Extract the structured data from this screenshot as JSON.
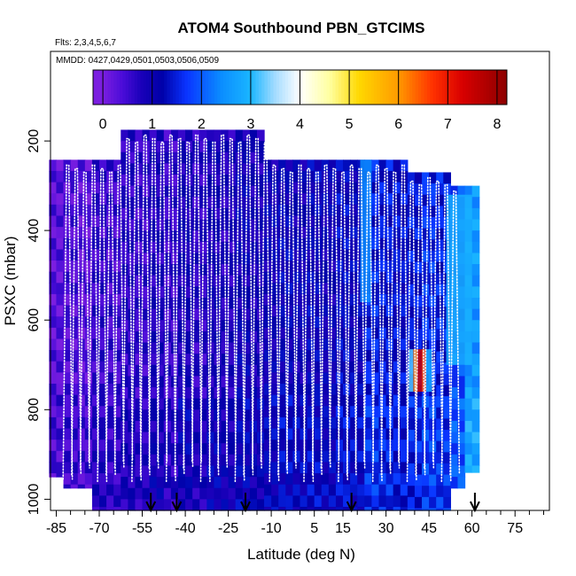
{
  "chart_data": {
    "type": "heatmap",
    "title": "ATOM4 Southbound PBN_GTCIMS",
    "subtitle_flights": "Flts: 2,3,4,5,6,7",
    "subtitle_dates": "MMDD: 0427,0429,0501,0503,0506,0509",
    "xlabel": "Latitude (deg N)",
    "ylabel": "PSXC (mbar)",
    "xlim": [
      -87,
      87
    ],
    "ylim": [
      1025,
      0
    ],
    "x_tick_labels": [
      {
        "value": -85,
        "label": "-85"
      },
      {
        "value": -70,
        "label": "-70"
      },
      {
        "value": -55,
        "label": "-55"
      },
      {
        "value": -40,
        "label": "-40"
      },
      {
        "value": -25,
        "label": "-25"
      },
      {
        "value": -10,
        "label": "-10"
      },
      {
        "value": 5,
        "label": "5"
      },
      {
        "value": 15,
        "label": "15"
      },
      {
        "value": 30,
        "label": "30"
      },
      {
        "value": 45,
        "label": "45"
      },
      {
        "value": 60,
        "label": "60"
      },
      {
        "value": 75,
        "label": "75"
      }
    ],
    "x_minor_ticks": [
      -80,
      -75,
      -65,
      -60,
      -50,
      -45,
      -35,
      -30,
      -20,
      -15,
      -5,
      0,
      10,
      20,
      25,
      35,
      40,
      50,
      55,
      65,
      70,
      80,
      85
    ],
    "y_ticks": [
      {
        "value": 200,
        "label": "200"
      },
      {
        "value": 400,
        "label": "400"
      },
      {
        "value": 600,
        "label": "600"
      },
      {
        "value": 800,
        "label": "800"
      },
      {
        "value": 1000,
        "label": "1000"
      }
    ],
    "colorbar": {
      "min": -0.2,
      "max": 8.2,
      "ticks": [
        {
          "value": 0,
          "label": "0"
        },
        {
          "value": 1,
          "label": "1"
        },
        {
          "value": 2,
          "label": "2"
        },
        {
          "value": 3,
          "label": "3"
        },
        {
          "value": 4,
          "label": "4"
        },
        {
          "value": 5,
          "label": "5"
        },
        {
          "value": 6,
          "label": "6"
        },
        {
          "value": 7,
          "label": "7"
        },
        {
          "value": 8,
          "label": "8"
        }
      ],
      "stops": [
        {
          "v": 0.0,
          "c": "#7b1ee0"
        },
        {
          "v": 0.4,
          "c": "#4a0cd8"
        },
        {
          "v": 0.8,
          "c": "#1800b8"
        },
        {
          "v": 1.2,
          "c": "#0000a8"
        },
        {
          "v": 1.7,
          "c": "#0a34ff"
        },
        {
          "v": 2.4,
          "c": "#0b8dff"
        },
        {
          "v": 3.0,
          "c": "#1ab6ff"
        },
        {
          "v": 3.5,
          "c": "#a5dcff"
        },
        {
          "v": 4.0,
          "c": "#ffffff"
        },
        {
          "v": 4.6,
          "c": "#ffffa0"
        },
        {
          "v": 5.2,
          "c": "#ffd800"
        },
        {
          "v": 6.0,
          "c": "#ff9a00"
        },
        {
          "v": 6.7,
          "c": "#ff3000"
        },
        {
          "v": 7.3,
          "c": "#d80000"
        },
        {
          "v": 8.2,
          "c": "#8c0000"
        }
      ]
    },
    "columns": [
      {
        "lat": -85,
        "p_top": 242,
        "p_bot": 950,
        "v": 0.3
      },
      {
        "lat": -80,
        "p_top": 242,
        "p_bot": 975,
        "v": 0.4
      },
      {
        "lat": -75,
        "p_top": 242,
        "p_bot": 975,
        "v": 0.3
      },
      {
        "lat": -70,
        "p_top": 242,
        "p_bot": 1025,
        "v": 0.6
      },
      {
        "lat": -65,
        "p_top": 242,
        "p_bot": 1025,
        "v": 0.5
      },
      {
        "lat": -60,
        "p_top": 175,
        "p_bot": 1025,
        "v": 0.7
      },
      {
        "lat": -55,
        "p_top": 175,
        "p_bot": 1025,
        "v": 0.6
      },
      {
        "lat": -50,
        "p_top": 175,
        "p_bot": 1025,
        "v": 0.8
      },
      {
        "lat": -45,
        "p_top": 175,
        "p_bot": 1025,
        "v": 0.6
      },
      {
        "lat": -40,
        "p_top": 175,
        "p_bot": 1025,
        "v": 0.9
      },
      {
        "lat": -35,
        "p_top": 175,
        "p_bot": 1025,
        "v": 0.7
      },
      {
        "lat": -30,
        "p_top": 175,
        "p_bot": 1025,
        "v": 0.9
      },
      {
        "lat": -25,
        "p_top": 175,
        "p_bot": 1025,
        "v": 0.8
      },
      {
        "lat": -20,
        "p_top": 175,
        "p_bot": 1025,
        "v": 1.0
      },
      {
        "lat": -15,
        "p_top": 175,
        "p_bot": 1025,
        "v": 0.9
      },
      {
        "lat": -10,
        "p_top": 242,
        "p_bot": 1025,
        "v": 1.0
      },
      {
        "lat": -5,
        "p_top": 242,
        "p_bot": 1025,
        "v": 1.1
      },
      {
        "lat": 0,
        "p_top": 242,
        "p_bot": 1025,
        "v": 1.0
      },
      {
        "lat": 5,
        "p_top": 242,
        "p_bot": 1025,
        "v": 1.1
      },
      {
        "lat": 10,
        "p_top": 242,
        "p_bot": 1025,
        "v": 1.0
      },
      {
        "lat": 15,
        "p_top": 242,
        "p_bot": 1025,
        "v": 1.2
      },
      {
        "lat": 20,
        "p_top": 242,
        "p_bot": 1025,
        "v": 1.1
      },
      {
        "lat": 25,
        "p_top": 242,
        "p_bot": 1025,
        "v": 1.5
      },
      {
        "lat": 30,
        "p_top": 242,
        "p_bot": 1025,
        "v": 1.4
      },
      {
        "lat": 35,
        "p_top": 242,
        "p_bot": 1025,
        "v": 1.3
      },
      {
        "lat": 40,
        "p_top": 270,
        "p_bot": 1025,
        "v": 1.4
      },
      {
        "lat": 45,
        "p_top": 270,
        "p_bot": 1025,
        "v": 1.6
      },
      {
        "lat": 50,
        "p_top": 270,
        "p_bot": 1025,
        "v": 1.5
      },
      {
        "lat": 55,
        "p_top": 300,
        "p_bot": 975,
        "v": 1.8
      },
      {
        "lat": 60,
        "p_top": 300,
        "p_bot": 940,
        "v": 2.6
      }
    ],
    "highlights": [
      {
        "lat0": 21,
        "lat1": 25,
        "p_top": 242,
        "p_bot": 560,
        "v": 2.4
      },
      {
        "lat0": 51,
        "lat1": 60,
        "p_top": 320,
        "p_bot": 700,
        "v": 2.9
      },
      {
        "lat0": 39.5,
        "lat1": 41,
        "p_top": 665,
        "p_bot": 760,
        "v": 6.2
      },
      {
        "lat0": 41,
        "lat1": 42.5,
        "p_top": 665,
        "p_bot": 760,
        "v": 7.4
      },
      {
        "lat0": 42.5,
        "lat1": 44,
        "p_top": 665,
        "p_bot": 760,
        "v": 6.6
      },
      {
        "lat0": 38,
        "lat1": 39.5,
        "p_top": 665,
        "p_bot": 760,
        "v": 3.2
      },
      {
        "lat0": 44,
        "lat1": 46,
        "p_top": 665,
        "p_bot": 760,
        "v": 2.8
      }
    ],
    "profile_latitudes": [
      -82,
      -79,
      -76,
      -73,
      -70,
      -67,
      -64,
      -61,
      -58,
      -55,
      -52,
      -49,
      -46,
      -43,
      -40,
      -37,
      -34,
      -31,
      -28,
      -25,
      -22,
      -19,
      -16,
      -13,
      -10,
      -7,
      -4,
      -1,
      2,
      5,
      8,
      11,
      14,
      17,
      20,
      23,
      26,
      29,
      32,
      35,
      38,
      41,
      44,
      47,
      50,
      53
    ],
    "arrow_latitudes": [
      -52,
      -43,
      -19,
      18,
      61
    ],
    "colors": {
      "background": "#ffffff",
      "axis": "#000000",
      "track": "#ffffff"
    }
  }
}
